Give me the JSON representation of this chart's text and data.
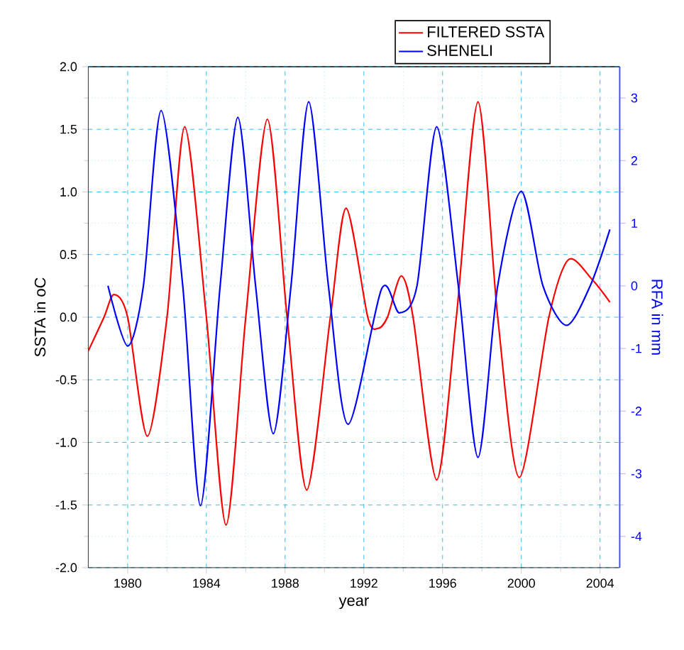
{
  "chart_data": {
    "type": "line",
    "xlabel": "year",
    "ylabel": "SSTA in oC",
    "y2label": "RFA in mm",
    "xlim": [
      1978,
      2005
    ],
    "xticks": [
      1980,
      1984,
      1988,
      1992,
      1996,
      2000,
      2004
    ],
    "ylim": [
      -2,
      2
    ],
    "yticks": [
      {
        "value": -2,
        "label": "-2.0"
      },
      {
        "value": -1.5,
        "label": "-1.5"
      },
      {
        "value": -1,
        "label": "-1.0"
      },
      {
        "value": -0.5,
        "label": "-0.5"
      },
      {
        "value": 0,
        "label": "0.0"
      },
      {
        "value": 0.5,
        "label": "0.5"
      },
      {
        "value": 1,
        "label": "1.0"
      },
      {
        "value": 1.5,
        "label": "1.5"
      },
      {
        "value": 2,
        "label": "2.0"
      }
    ],
    "y2lim": [
      -4.5,
      3.5
    ],
    "y2ticks": [
      -4,
      -3,
      -2,
      -1,
      0,
      1,
      2,
      3
    ],
    "grid": true,
    "legend": "top right",
    "series": [
      {
        "name": "FILTERED SSTA",
        "color": "#ff0000",
        "x": [
          1978.0,
          1978.8,
          1979.3,
          1980.0,
          1981.0,
          1982.0,
          1982.9,
          1984.0,
          1985.0,
          1986.0,
          1987.1,
          1988.1,
          1989.1,
          1990.3,
          1991.1,
          1992.2,
          1992.7,
          1993.2,
          1993.9,
          1994.5,
          1995.7,
          1996.7,
          1997.8,
          1998.8,
          1999.9,
          2001.4,
          2002.4,
          2003.6,
          2004.5
        ],
        "values": [
          -0.27,
          0.0,
          0.18,
          0.0,
          -0.95,
          0.0,
          1.52,
          0.0,
          -1.66,
          0.0,
          1.58,
          0.0,
          -1.38,
          0.0,
          0.87,
          0.0,
          -0.09,
          0.0,
          0.33,
          0.0,
          -1.3,
          0.0,
          1.72,
          0.0,
          -1.28,
          0.0,
          0.46,
          0.3,
          0.12
        ]
      },
      {
        "name": "SHENELI",
        "color": "#0000ff",
        "axis": "y2",
        "x": [
          1979.0,
          1980.0,
          1980.8,
          1981.7,
          1982.8,
          1983.7,
          1984.7,
          1985.6,
          1986.5,
          1987.4,
          1988.3,
          1989.2,
          1990.2,
          1991.2,
          1992.9,
          1993.8,
          1994.7,
          1995.7,
          1996.8,
          1997.8,
          1998.8,
          2000.0,
          2001.1,
          2002.3,
          2003.5,
          2004.5
        ],
        "values": [
          0.0,
          -0.96,
          0.0,
          2.8,
          0.0,
          -3.51,
          0.0,
          2.69,
          0.0,
          -2.36,
          0.0,
          2.94,
          0.0,
          -2.21,
          -0.05,
          -0.43,
          0.0,
          2.54,
          0.0,
          -2.74,
          0.0,
          1.51,
          0.0,
          -0.63,
          0.0,
          0.9
        ]
      }
    ]
  }
}
